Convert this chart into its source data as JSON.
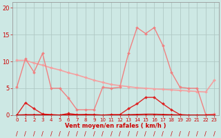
{
  "bg_color": "#cde8e4",
  "grid_color": "#b0c8c4",
  "xlabel": "Vent moyen/en rafales ( km/h )",
  "xlabel_color": "#cc0000",
  "tick_color": "#cc0000",
  "ylim": [
    0,
    21
  ],
  "xlim": [
    -0.5,
    23.5
  ],
  "yticks": [
    0,
    5,
    10,
    15,
    20
  ],
  "xticks": [
    0,
    1,
    2,
    3,
    4,
    5,
    6,
    7,
    8,
    9,
    10,
    11,
    12,
    13,
    14,
    15,
    16,
    17,
    18,
    19,
    20,
    21,
    22,
    23
  ],
  "series": [
    {
      "x": [
        0,
        1,
        2,
        3,
        4,
        5,
        6,
        7,
        8,
        9,
        10,
        11,
        12,
        13,
        14,
        15,
        16,
        17,
        18,
        19,
        20,
        21,
        22,
        23
      ],
      "y": [
        10.2,
        10.2,
        9.7,
        9.3,
        8.8,
        8.4,
        7.9,
        7.5,
        7.0,
        6.5,
        6.1,
        5.7,
        5.5,
        5.3,
        5.1,
        5.0,
        4.9,
        4.8,
        4.7,
        4.6,
        4.5,
        4.4,
        4.3,
        6.5
      ],
      "color": "#f4a0a0",
      "lw": 1.2,
      "marker": "D",
      "ms": 2.0
    },
    {
      "x": [
        0,
        1,
        2,
        3,
        4,
        5,
        6,
        7,
        8,
        9,
        10,
        11,
        12,
        13,
        14,
        15,
        16,
        17,
        18,
        19,
        20,
        21,
        22,
        23
      ],
      "y": [
        5.2,
        10.5,
        8.0,
        11.5,
        5.0,
        5.0,
        3.2,
        1.0,
        1.0,
        1.0,
        5.2,
        5.0,
        5.2,
        11.5,
        16.3,
        15.2,
        16.3,
        13.0,
        8.0,
        5.2,
        5.0,
        5.0,
        0.1,
        0.2
      ],
      "color": "#f08080",
      "lw": 1.0,
      "marker": "D",
      "ms": 2.0
    },
    {
      "x": [
        0,
        1,
        2,
        3,
        4,
        5,
        6,
        7,
        8,
        9,
        10,
        11,
        12,
        13,
        14,
        15,
        16,
        17,
        18,
        19,
        20,
        21,
        22,
        23
      ],
      "y": [
        0.0,
        2.3,
        1.2,
        0.2,
        0.1,
        0.0,
        0.3,
        0.1,
        0.1,
        0.1,
        0.0,
        0.1,
        0.1,
        1.2,
        2.1,
        3.3,
        3.3,
        2.1,
        1.0,
        0.1,
        0.0,
        0.0,
        0.0,
        0.0
      ],
      "color": "#dd2222",
      "lw": 1.0,
      "marker": "D",
      "ms": 2.0
    },
    {
      "x": [
        0,
        1,
        2,
        3,
        4,
        5,
        6,
        7,
        8,
        9,
        10,
        11,
        12,
        13,
        14,
        15,
        16,
        17,
        18,
        19,
        20,
        21,
        22,
        23
      ],
      "y": [
        0.0,
        0.05,
        0.05,
        0.05,
        0.0,
        0.0,
        0.05,
        0.0,
        0.05,
        0.0,
        0.0,
        0.0,
        0.0,
        0.05,
        0.1,
        0.15,
        0.15,
        0.1,
        0.05,
        0.0,
        0.0,
        0.0,
        0.0,
        0.0
      ],
      "color": "#cc0000",
      "lw": 1.2,
      "marker": "D",
      "ms": 1.5
    }
  ],
  "slash_color": "#cc0000",
  "slash_count": 24
}
